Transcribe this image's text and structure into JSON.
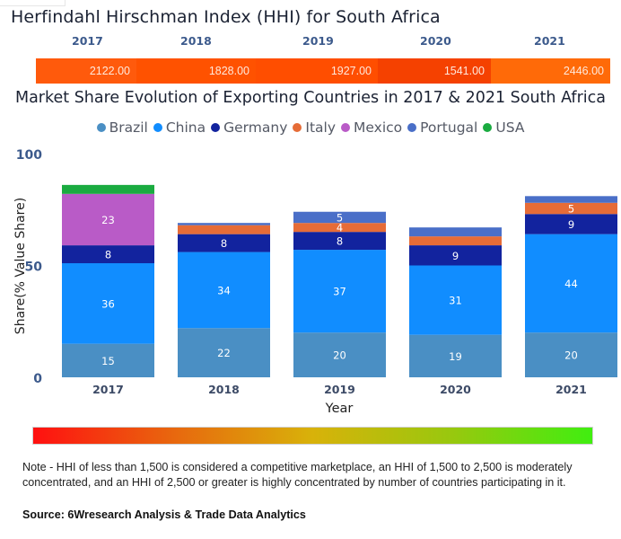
{
  "hhi": {
    "title": "Herfindahl Hirschman Index (HHI) for South Africa",
    "cells": [
      {
        "year": "2017",
        "value": "2122.00",
        "color": "#ff5a0c"
      },
      {
        "year": "2018",
        "value": "1828.00",
        "color": "#ff5200"
      },
      {
        "year": "2019",
        "value": "1927.00",
        "color": "#ff4e00"
      },
      {
        "year": "2020",
        "value": "1541.00",
        "color": "#f54100"
      },
      {
        "year": "2021",
        "value": "2446.00",
        "color": "#ff6a08"
      }
    ]
  },
  "chart_data": {
    "type": "bar",
    "stacked": true,
    "title": "Market Share Evolution of Exporting Countries in 2017 & 2021 South Africa",
    "xlabel": "Year",
    "ylabel": "Share(% Value Share)",
    "ylim": [
      0,
      100
    ],
    "yticks": [
      "0",
      "50",
      "100"
    ],
    "categories": [
      "2017",
      "2018",
      "2019",
      "2020",
      "2021"
    ],
    "legend_position": "top-center",
    "series": [
      {
        "name": "Brazil",
        "color": "#4a8fc4",
        "values": [
          15,
          22,
          20,
          19,
          20
        ],
        "labels": [
          "15",
          "22",
          "20",
          "19",
          "20"
        ]
      },
      {
        "name": "China",
        "color": "#118dff",
        "values": [
          36,
          34,
          37,
          31,
          44
        ],
        "labels": [
          "36",
          "34",
          "37",
          "31",
          "44"
        ]
      },
      {
        "name": "Germany",
        "color": "#12239e",
        "values": [
          8,
          8,
          8,
          9,
          9
        ],
        "labels": [
          "8",
          "8",
          "8",
          "9",
          "9"
        ]
      },
      {
        "name": "Italy",
        "color": "#e66c37",
        "values": [
          0,
          4,
          4,
          4,
          5
        ],
        "labels": [
          "",
          "",
          "4",
          "",
          "5"
        ]
      },
      {
        "name": "Mexico",
        "color": "#b95bc7",
        "values": [
          23,
          0,
          0,
          0,
          0
        ],
        "labels": [
          "23",
          "",
          "",
          "",
          ""
        ]
      },
      {
        "name": "Portugal",
        "color": "#4a6fc8",
        "values": [
          0,
          1,
          5,
          4,
          3
        ],
        "labels": [
          "",
          "",
          "5",
          "",
          ""
        ]
      },
      {
        "name": "USA",
        "color": "#1aab40",
        "values": [
          4,
          0,
          0,
          0,
          0
        ],
        "labels": [
          "",
          "",
          "",
          "",
          ""
        ]
      }
    ]
  },
  "scale_bar": {
    "colors": [
      "#ff1010",
      "#40ee10"
    ]
  },
  "footer": {
    "note": "Note - HHI of less than 1,500 is considered a competitive marketplace, an HHI of 1,500 to 2,500 is moderately concentrated, and an HHI of 2,500 or greater is highly concentrated by number of countries participating in it.",
    "source": "Source: 6Wresearch Analysis & Trade Data Analytics"
  }
}
